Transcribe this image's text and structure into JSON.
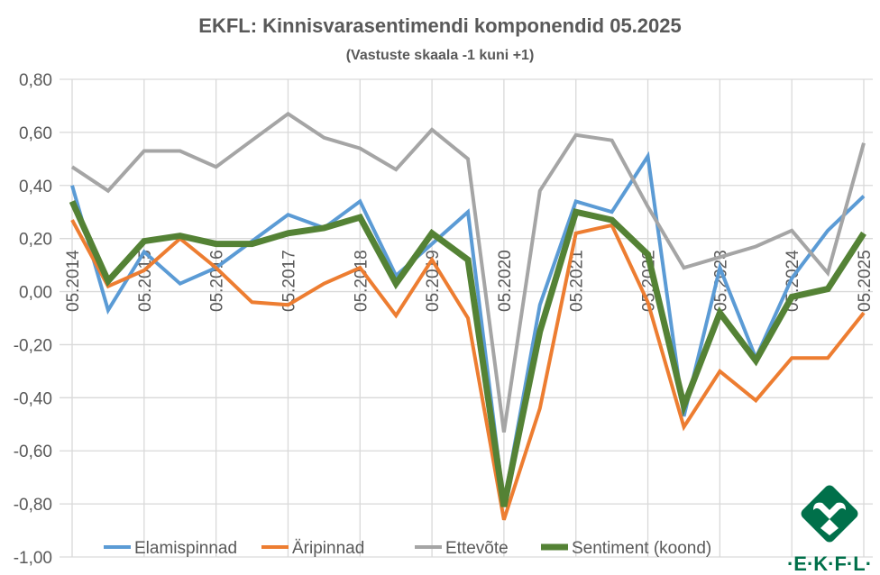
{
  "chart_data": {
    "type": "line",
    "title": "EKFL: Kinnisvarasentimendi komponendid 05.2025",
    "subtitle": "(Vastuste skaala -1 kuni +1)",
    "xlabel": "",
    "ylabel": "",
    "ylim": [
      -1.0,
      0.8
    ],
    "yticks": [
      "0,80",
      "0,60",
      "0,40",
      "0,20",
      "0,00",
      "-0,20",
      "-0,40",
      "-0,60",
      "-0,80",
      "-1,00"
    ],
    "ytick_values": [
      0.8,
      0.6,
      0.4,
      0.2,
      0,
      -0.2,
      -0.4,
      -0.6,
      -0.8,
      -1.0
    ],
    "xtick_labels": [
      "05.2014",
      "05.2015",
      "05.2016",
      "05.2017",
      "05.2018",
      "05.2019",
      "05.2020",
      "05.2021",
      "05.2022",
      "05.2023",
      "05.2024",
      "05.2025"
    ],
    "x": [
      "05.2014",
      "11.2014",
      "05.2015",
      "11.2015",
      "05.2016",
      "11.2016",
      "05.2017",
      "11.2017",
      "05.2018",
      "11.2018",
      "05.2019",
      "11.2019",
      "05.2020",
      "11.2020",
      "05.2021",
      "11.2021",
      "05.2022",
      "11.2022",
      "05.2023",
      "11.2023",
      "05.2024",
      "11.2024",
      "05.2025"
    ],
    "grid": true,
    "legend_placement": "bottom",
    "series": [
      {
        "name": "Elamispinnad",
        "color": "#5B9BD5",
        "values": [
          0.4,
          -0.07,
          0.15,
          0.03,
          0.09,
          0.19,
          0.29,
          0.24,
          0.34,
          0.06,
          0.18,
          0.3,
          -0.8,
          -0.05,
          0.34,
          0.3,
          0.51,
          -0.47,
          0.09,
          -0.25,
          0.05,
          0.23,
          0.36
        ]
      },
      {
        "name": "Äripinnad",
        "color": "#ED7D31",
        "values": [
          0.27,
          0.02,
          0.08,
          0.2,
          0.09,
          -0.04,
          -0.05,
          0.03,
          0.09,
          -0.09,
          0.12,
          -0.1,
          -0.86,
          -0.44,
          0.22,
          0.25,
          -0.04,
          -0.51,
          -0.3,
          -0.41,
          -0.25,
          -0.25,
          -0.08
        ]
      },
      {
        "name": "Ettevõte",
        "color": "#A5A5A5",
        "values": [
          0.47,
          0.38,
          0.53,
          0.53,
          0.47,
          0.57,
          0.67,
          0.58,
          0.54,
          0.46,
          0.61,
          0.5,
          -0.53,
          0.38,
          0.59,
          0.57,
          0.32,
          0.09,
          0.13,
          0.17,
          0.23,
          0.07,
          0.56
        ]
      },
      {
        "name": "Sentiment (koond)",
        "color": "#548235",
        "values": [
          0.34,
          0.04,
          0.19,
          0.21,
          0.18,
          0.18,
          0.22,
          0.24,
          0.28,
          0.03,
          0.22,
          0.12,
          -0.81,
          -0.15,
          0.3,
          0.27,
          0.14,
          -0.43,
          -0.08,
          -0.26,
          -0.02,
          0.01,
          0.22
        ]
      }
    ]
  },
  "logo": {
    "text": "·E·K·F·L·",
    "color": "#00704A"
  }
}
